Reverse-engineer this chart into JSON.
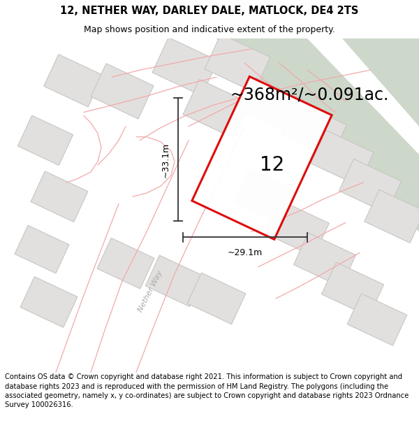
{
  "title": "12, NETHER WAY, DARLEY DALE, MATLOCK, DE4 2TS",
  "subtitle": "Map shows position and indicative extent of the property.",
  "area_text": "~368m²/~0.091ac.",
  "label_number": "12",
  "dim_width": "~29.1m",
  "dim_height": "~33.1m",
  "road_label": "Nether Way",
  "footer_text": "Contains OS data © Crown copyright and database right 2021. This information is subject to Crown copyright and database rights 2023 and is reproduced with the permission of HM Land Registry. The polygons (including the associated geometry, namely x, y co-ordinates) are subject to Crown copyright and database rights 2023 Ordnance Survey 100026316.",
  "map_bg": "#f7f5f3",
  "green_area_color": "#cdd8cb",
  "white_path_color": "#f0eee9",
  "plot_line_color": "#f0aaaa",
  "building_fill": "#e2e0de",
  "building_edge": "#c8c6c4",
  "highlight_color": "#dd0000",
  "dim_line_color": "#333333",
  "road_label_color": "#aaaaaa",
  "title_fontsize": 10.5,
  "subtitle_fontsize": 9,
  "area_fontsize": 17,
  "label_fontsize": 20,
  "dim_fontsize": 9,
  "footer_fontsize": 7.2,
  "road_fontsize": 8
}
